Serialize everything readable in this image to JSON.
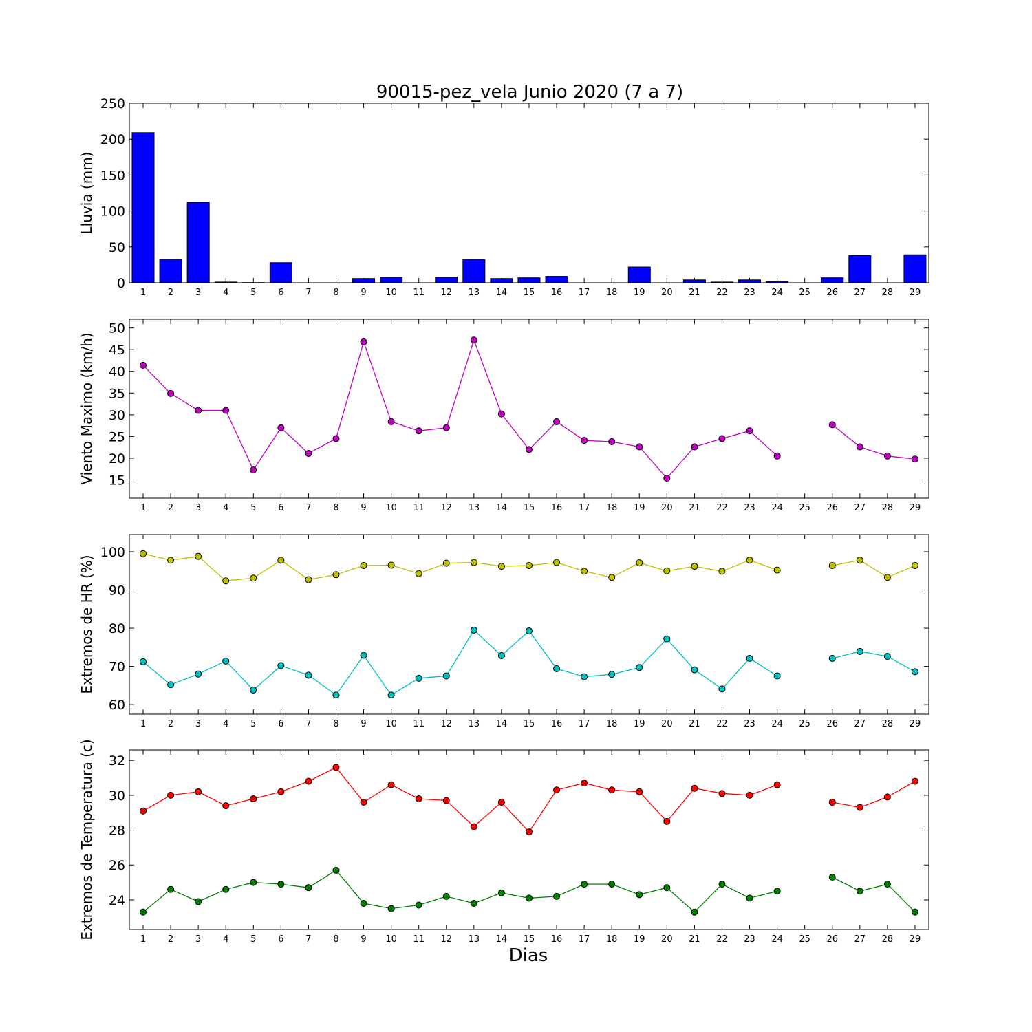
{
  "title": "90015-pez_vela Junio 2020  (7 a 7)",
  "xlabel": "Dias",
  "colors": {
    "bar": "#0000ff",
    "wind": "#bf00bf",
    "hr_max": "#bfbf00",
    "hr_min": "#00bfbf",
    "temp_max": "#ff0000",
    "temp_min": "#008000"
  },
  "chart_data": [
    {
      "type": "bar",
      "ylabel": "Lluvia (mm)",
      "ylim": [
        0,
        250
      ],
      "yticks": [
        0,
        50,
        100,
        150,
        200,
        250
      ],
      "categories": [
        1,
        2,
        3,
        4,
        5,
        6,
        7,
        8,
        9,
        10,
        11,
        12,
        13,
        14,
        15,
        16,
        17,
        18,
        19,
        20,
        21,
        22,
        23,
        24,
        25,
        26,
        27,
        28,
        29
      ],
      "values": [
        209,
        33,
        112,
        1,
        0.3,
        28,
        0,
        0,
        6,
        8,
        0,
        8,
        32,
        6,
        7,
        9,
        0,
        0,
        22,
        0,
        4,
        1,
        4,
        2,
        0,
        7,
        38,
        0,
        39
      ]
    },
    {
      "type": "line",
      "ylabel": "Viento Maximo (km/h)",
      "ylim": [
        10.8,
        52
      ],
      "yticks": [
        15,
        20,
        25,
        30,
        35,
        40,
        45,
        50
      ],
      "x": [
        1,
        2,
        3,
        4,
        5,
        6,
        7,
        8,
        9,
        10,
        11,
        12,
        13,
        14,
        15,
        16,
        17,
        18,
        19,
        20,
        21,
        22,
        23,
        24,
        25,
        26,
        27,
        28,
        29
      ],
      "series": [
        {
          "values": [
            41.4,
            34.9,
            31.0,
            31.0,
            17.3,
            27.0,
            21.1,
            24.5,
            46.8,
            28.4,
            26.3,
            27.0,
            47.2,
            30.2,
            22.0,
            28.4,
            24.1,
            23.8,
            22.6,
            15.4,
            22.6,
            24.5,
            26.3,
            20.5,
            null,
            27.7,
            22.6,
            20.5,
            19.8
          ]
        }
      ]
    },
    {
      "type": "line",
      "ylabel": "Extremos de HR (%)",
      "ylim": [
        57.5,
        104.5
      ],
      "yticks": [
        60,
        70,
        80,
        90,
        100
      ],
      "x": [
        1,
        2,
        3,
        4,
        5,
        6,
        7,
        8,
        9,
        10,
        11,
        12,
        13,
        14,
        15,
        16,
        17,
        18,
        19,
        20,
        21,
        22,
        23,
        24,
        25,
        26,
        27,
        28,
        29
      ],
      "series": [
        {
          "values": [
            99.5,
            97.8,
            98.8,
            92.4,
            93.1,
            97.8,
            92.7,
            94.0,
            96.4,
            96.5,
            94.3,
            97.0,
            97.2,
            96.2,
            96.4,
            97.2,
            94.9,
            93.3,
            97.1,
            95.0,
            96.2,
            94.9,
            97.8,
            95.2,
            null,
            96.4,
            97.8,
            93.3,
            96.4
          ]
        },
        {
          "values": [
            71.2,
            65.2,
            68.0,
            71.4,
            63.8,
            70.2,
            67.7,
            62.5,
            72.9,
            62.5,
            66.9,
            67.5,
            79.5,
            72.8,
            79.3,
            69.4,
            67.3,
            67.9,
            69.7,
            77.2,
            69.1,
            64.1,
            72.1,
            67.5,
            null,
            72.1,
            73.9,
            72.6,
            68.6
          ]
        }
      ]
    },
    {
      "type": "line",
      "ylabel": "Extremos de Temperatura (c)",
      "ylim": [
        22.3,
        32.6
      ],
      "yticks": [
        24,
        26,
        28,
        30,
        32
      ],
      "x": [
        1,
        2,
        3,
        4,
        5,
        6,
        7,
        8,
        9,
        10,
        11,
        12,
        13,
        14,
        15,
        16,
        17,
        18,
        19,
        20,
        21,
        22,
        23,
        24,
        25,
        26,
        27,
        28,
        29
      ],
      "series": [
        {
          "values": [
            29.1,
            30.0,
            30.2,
            29.4,
            29.8,
            30.2,
            30.8,
            31.6,
            29.6,
            30.6,
            29.8,
            29.7,
            28.2,
            29.6,
            27.9,
            30.3,
            30.7,
            30.3,
            30.2,
            28.5,
            30.4,
            30.1,
            30.0,
            30.6,
            null,
            29.6,
            29.3,
            29.9,
            30.8
          ]
        },
        {
          "values": [
            23.3,
            24.6,
            23.9,
            24.6,
            25.0,
            24.9,
            24.7,
            25.7,
            23.8,
            23.5,
            23.7,
            24.2,
            23.8,
            24.4,
            24.1,
            24.2,
            24.9,
            24.9,
            24.3,
            24.7,
            23.3,
            24.9,
            24.1,
            24.5,
            null,
            25.3,
            24.5,
            24.9,
            23.3
          ]
        }
      ]
    }
  ]
}
